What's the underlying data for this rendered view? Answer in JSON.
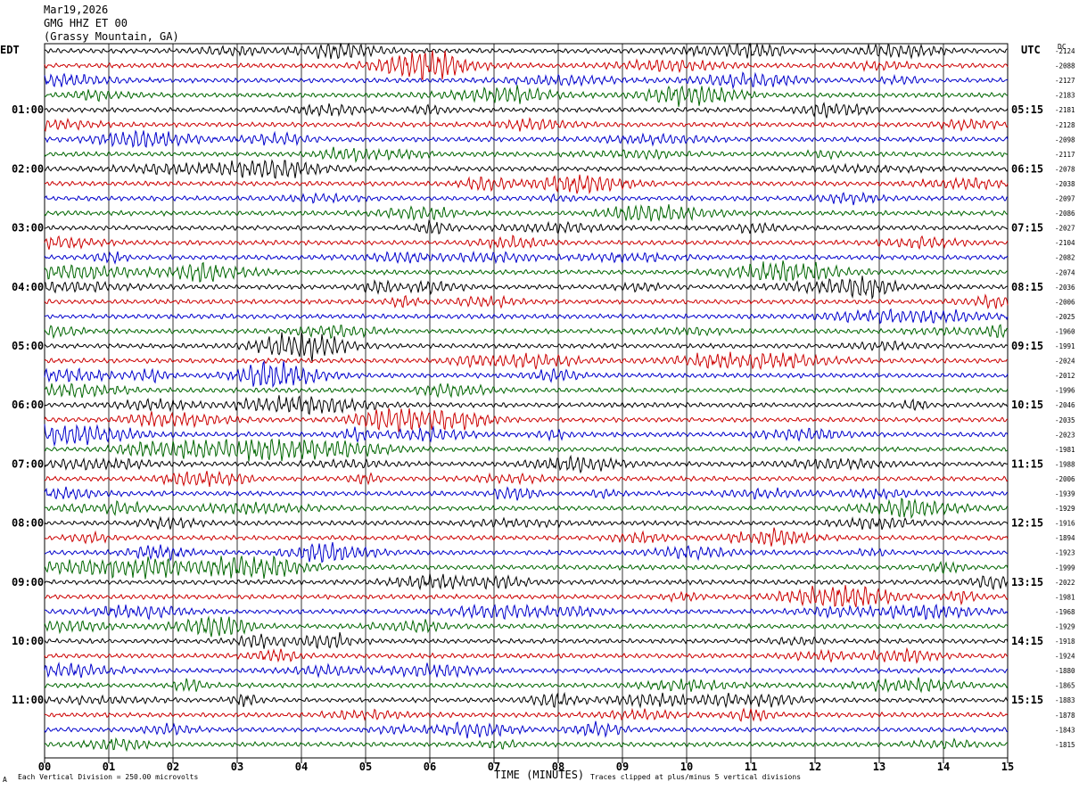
{
  "header": {
    "date": "Mar19,2026",
    "channel": "GMG HHZ ET 00",
    "location": "(Grassy Mountain, GA)"
  },
  "left_axis_title": "EDT",
  "right_axis_title": "UTC",
  "dc_title": "DC",
  "footer": {
    "scale": "Each Vertical Division =  250.00 microvolts",
    "clip": "Traces clipped at plus/minus 5 vertical divisions",
    "corner_mark": "A"
  },
  "colors": {
    "trace_cycle": [
      "#000000",
      "#cc0000",
      "#0000cc",
      "#006600"
    ],
    "grid": "#000000",
    "background": "#ffffff"
  },
  "chart_data": {
    "type": "line",
    "title": "",
    "xlabel": "TIME (MINUTES)",
    "xlim": [
      0,
      15
    ],
    "x_ticks": [
      "00",
      "01",
      "02",
      "03",
      "04",
      "05",
      "06",
      "07",
      "08",
      "09",
      "10",
      "11",
      "12",
      "13",
      "14",
      "15"
    ],
    "grid": true,
    "trace_count": 48,
    "left_hour_labels": [
      "01:00",
      "02:00",
      "03:00",
      "04:00",
      "05:00",
      "06:00",
      "07:00",
      "08:00",
      "09:00",
      "10:00",
      "11:00"
    ],
    "right_hour_labels": [
      "05:15",
      "06:15",
      "07:15",
      "08:15",
      "09:15",
      "10:15",
      "11:15",
      "12:15",
      "13:15",
      "14:15",
      "15:15"
    ],
    "dc_offsets": [
      "-2124",
      "-2088",
      "-2127",
      "-2183",
      "-2181",
      "-2128",
      "-2098",
      "-2117",
      "-2078",
      "-2038",
      "-2097",
      "-2086",
      "-2027",
      "-2104",
      "-2082",
      "-2074",
      "-2036",
      "-2006",
      "-2025",
      "-1960",
      "-1991",
      "-2024",
      "-2012",
      "-1996",
      "-2046",
      "-2035",
      "-2023",
      "-1981",
      "-1988",
      "-2006",
      "-1939",
      "-1929",
      "-1916",
      "-1894",
      "-1923",
      "-1999",
      "-2022",
      "-1981",
      "-1968",
      "-1929",
      "-1918",
      "-1924",
      "-1880",
      "-1865",
      "-1883",
      "-1878",
      "-1843",
      "-1815"
    ]
  }
}
